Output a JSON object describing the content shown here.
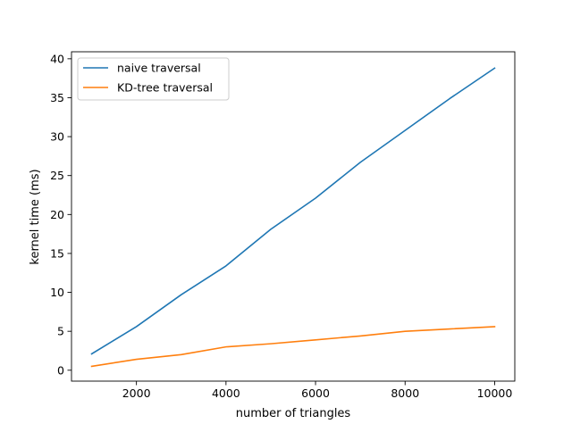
{
  "chart_data": {
    "type": "line",
    "title": "",
    "xlabel": "number of triangles",
    "ylabel": "kernel time (ms)",
    "xlim": [
      550,
      10450
    ],
    "ylim": [
      -1.4,
      40.9
    ],
    "xticks": [
      2000,
      4000,
      6000,
      8000,
      10000
    ],
    "yticks": [
      0,
      5,
      10,
      15,
      20,
      25,
      30,
      35,
      40
    ],
    "grid": false,
    "legend_position": "top-left",
    "x": [
      1000,
      2000,
      3000,
      4000,
      5000,
      6000,
      7000,
      8000,
      9000,
      10000
    ],
    "series": [
      {
        "name": "naive traversal",
        "color": "#1f77b4",
        "values": [
          2.1,
          5.6,
          9.7,
          13.4,
          18.1,
          22.1,
          26.7,
          30.8,
          34.9,
          38.8
        ]
      },
      {
        "name": "KD-tree traversal",
        "color": "#ff7f0e",
        "values": [
          0.5,
          1.4,
          2.0,
          3.0,
          3.4,
          3.9,
          4.4,
          5.0,
          5.3,
          5.6
        ]
      }
    ]
  }
}
